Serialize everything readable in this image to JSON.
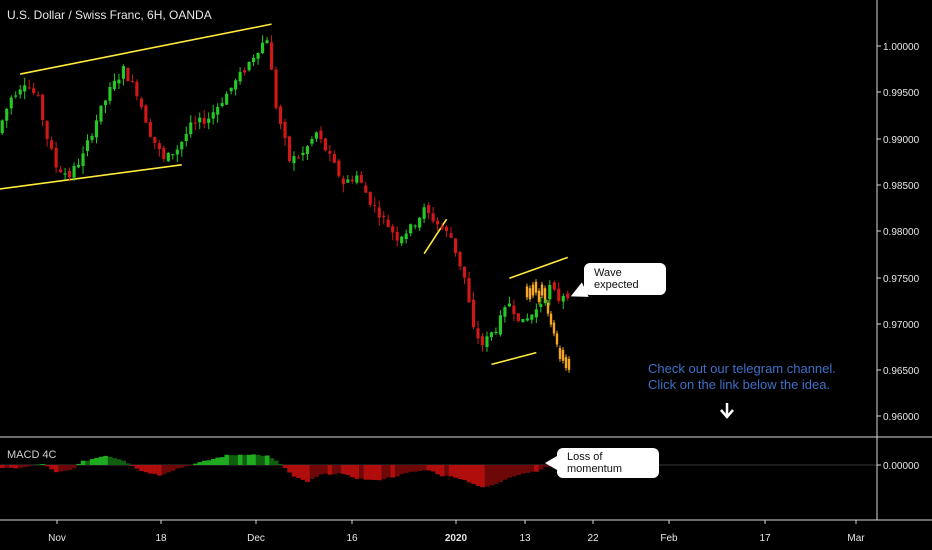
{
  "header": {
    "title": "U.S. Dollar / Swiss Franc, 6H, OANDA",
    "indicator_label": "MACD 4C"
  },
  "annotations": {
    "wave_callout": "Wave expected",
    "momentum_callout": "Loss of momentum",
    "telegram_line1": "Check out our telegram channel.",
    "telegram_line2": "Click on the link below the idea."
  },
  "colors": {
    "bull": "#26c826",
    "bear": "#d01818",
    "projection": "#f5a623",
    "trendline": "#ffeb3b",
    "macd_pos_strong": "#1faa1f",
    "macd_pos_weak": "#0f5f0f",
    "macd_neg_strong": "#b00d0d",
    "macd_neg_weak": "#6e0808",
    "note": "#3f6fc8"
  },
  "chart_data": {
    "type": "candlestick",
    "title": "U.S. Dollar / Swiss Franc, 6H, OANDA",
    "ylim": [
      0.957,
      1.0045
    ],
    "y_ticks": [
      "1.00000",
      "0.99500",
      "0.99000",
      "0.98500",
      "0.98000",
      "0.97500",
      "0.97000",
      "0.96500",
      "0.96000"
    ],
    "x_ticks": [
      "Nov",
      "18",
      "Dec",
      "16",
      "2020",
      "13",
      "22",
      "Feb",
      "17",
      "Mar"
    ],
    "x_tick_bold": [
      "2020"
    ],
    "price_path": [
      [
        0,
        0.9905
      ],
      [
        3,
        0.9945
      ],
      [
        6,
        0.9962
      ],
      [
        9,
        0.9942
      ],
      [
        11,
        0.99
      ],
      [
        13,
        0.9868
      ],
      [
        16,
        0.9858
      ],
      [
        19,
        0.988
      ],
      [
        22,
        0.992
      ],
      [
        25,
        0.9952
      ],
      [
        28,
        0.9975
      ],
      [
        31,
        0.995
      ],
      [
        34,
        0.9905
      ],
      [
        37,
        0.9875
      ],
      [
        40,
        0.9888
      ],
      [
        43,
        0.9912
      ],
      [
        47,
        0.9922
      ],
      [
        51,
        0.9948
      ],
      [
        55,
        0.9975
      ],
      [
        58,
        0.9998
      ],
      [
        60,
        1.001
      ],
      [
        62,
        0.9935
      ],
      [
        65,
        0.9875
      ],
      [
        68,
        0.9882
      ],
      [
        71,
        0.9905
      ],
      [
        74,
        0.9878
      ],
      [
        77,
        0.985
      ],
      [
        80,
        0.9858
      ],
      [
        83,
        0.983
      ],
      [
        86,
        0.981
      ],
      [
        89,
        0.979
      ],
      [
        92,
        0.98
      ],
      [
        95,
        0.982
      ],
      [
        98,
        0.9805
      ],
      [
        101,
        0.979
      ],
      [
        104,
        0.9745
      ],
      [
        106,
        0.9688
      ],
      [
        108,
        0.9672
      ],
      [
        111,
        0.969
      ],
      [
        114,
        0.9718
      ],
      [
        117,
        0.9695
      ],
      [
        120,
        0.971
      ],
      [
        123,
        0.9735
      ],
      [
        125,
        0.9722
      ],
      [
        126,
        0.9728
      ]
    ],
    "projection": [
      0.973,
      0.9728,
      0.9732,
      0.9735,
      0.9725,
      0.9732,
      0.9728,
      0.9712,
      0.97,
      0.969,
      0.9678,
      0.9662,
      0.966,
      0.9652,
      0.965
    ],
    "trendlines": [
      {
        "name": "channel-top",
        "from": [
          4,
          0.997
        ],
        "to": [
          60,
          1.0025
        ]
      },
      {
        "name": "channel-bottom",
        "from": [
          -1,
          0.9843
        ],
        "to": [
          40,
          0.987
        ]
      },
      {
        "name": "flag-line",
        "from": [
          94,
          0.9772
        ],
        "to": [
          99,
          0.981
        ]
      },
      {
        "name": "wedge-top",
        "from": [
          113,
          0.9745
        ],
        "to": [
          126,
          0.9768
        ]
      },
      {
        "name": "wedge-bottom",
        "from": [
          109,
          0.965
        ],
        "to": [
          119,
          0.9663
        ]
      }
    ],
    "macd": {
      "label": "MACD 4C",
      "y_tick": "0.00000",
      "ylim": [
        -1.0,
        0.55
      ],
      "anchors": [
        [
          0,
          -0.15
        ],
        [
          5,
          -0.1
        ],
        [
          9,
          0.05
        ],
        [
          12,
          -0.32
        ],
        [
          15,
          -0.22
        ],
        [
          18,
          0.15
        ],
        [
          23,
          0.4
        ],
        [
          27,
          0.2
        ],
        [
          31,
          -0.25
        ],
        [
          35,
          -0.42
        ],
        [
          39,
          -0.15
        ],
        [
          44,
          0.1
        ],
        [
          50,
          0.4
        ],
        [
          55,
          0.45
        ],
        [
          59,
          0.38
        ],
        [
          62,
          0.05
        ],
        [
          65,
          -0.5
        ],
        [
          68,
          -0.7
        ],
        [
          71,
          -0.4
        ],
        [
          75,
          -0.35
        ],
        [
          79,
          -0.55
        ],
        [
          83,
          -0.65
        ],
        [
          87,
          -0.5
        ],
        [
          91,
          -0.3
        ],
        [
          95,
          -0.2
        ],
        [
          98,
          -0.45
        ],
        [
          101,
          -0.5
        ],
        [
          104,
          -0.7
        ],
        [
          107,
          -0.95
        ],
        [
          110,
          -0.8
        ],
        [
          113,
          -0.5
        ],
        [
          116,
          -0.35
        ],
        [
          119,
          -0.25
        ],
        [
          121,
          -0.1
        ],
        [
          123,
          0.02
        ],
        [
          125,
          0.05
        ],
        [
          126,
          0.06
        ]
      ]
    }
  }
}
